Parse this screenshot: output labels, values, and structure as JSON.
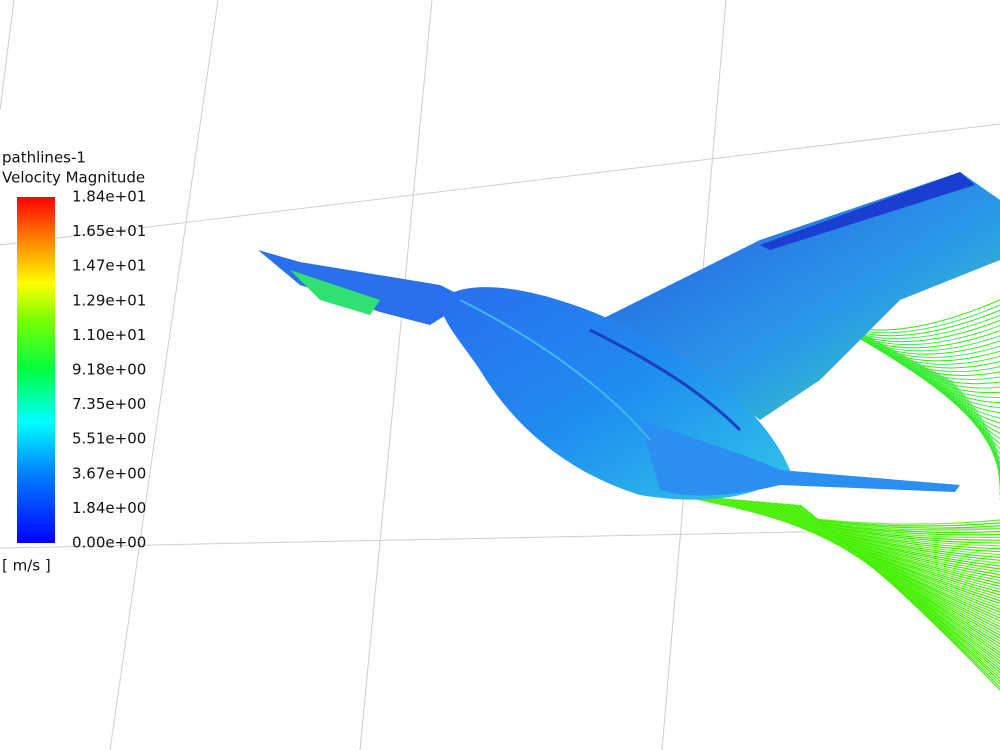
{
  "legend": {
    "title": "pathlines-1",
    "quantity": "Velocity Magnitude",
    "ticks": [
      "1.84e+01",
      "1.65e+01",
      "1.47e+01",
      "1.29e+01",
      "1.10e+01",
      "9.18e+00",
      "7.35e+00",
      "5.51e+00",
      "3.67e+00",
      "1.84e+00",
      "0.00e+00"
    ],
    "unit": "[ m/s ]"
  }
}
